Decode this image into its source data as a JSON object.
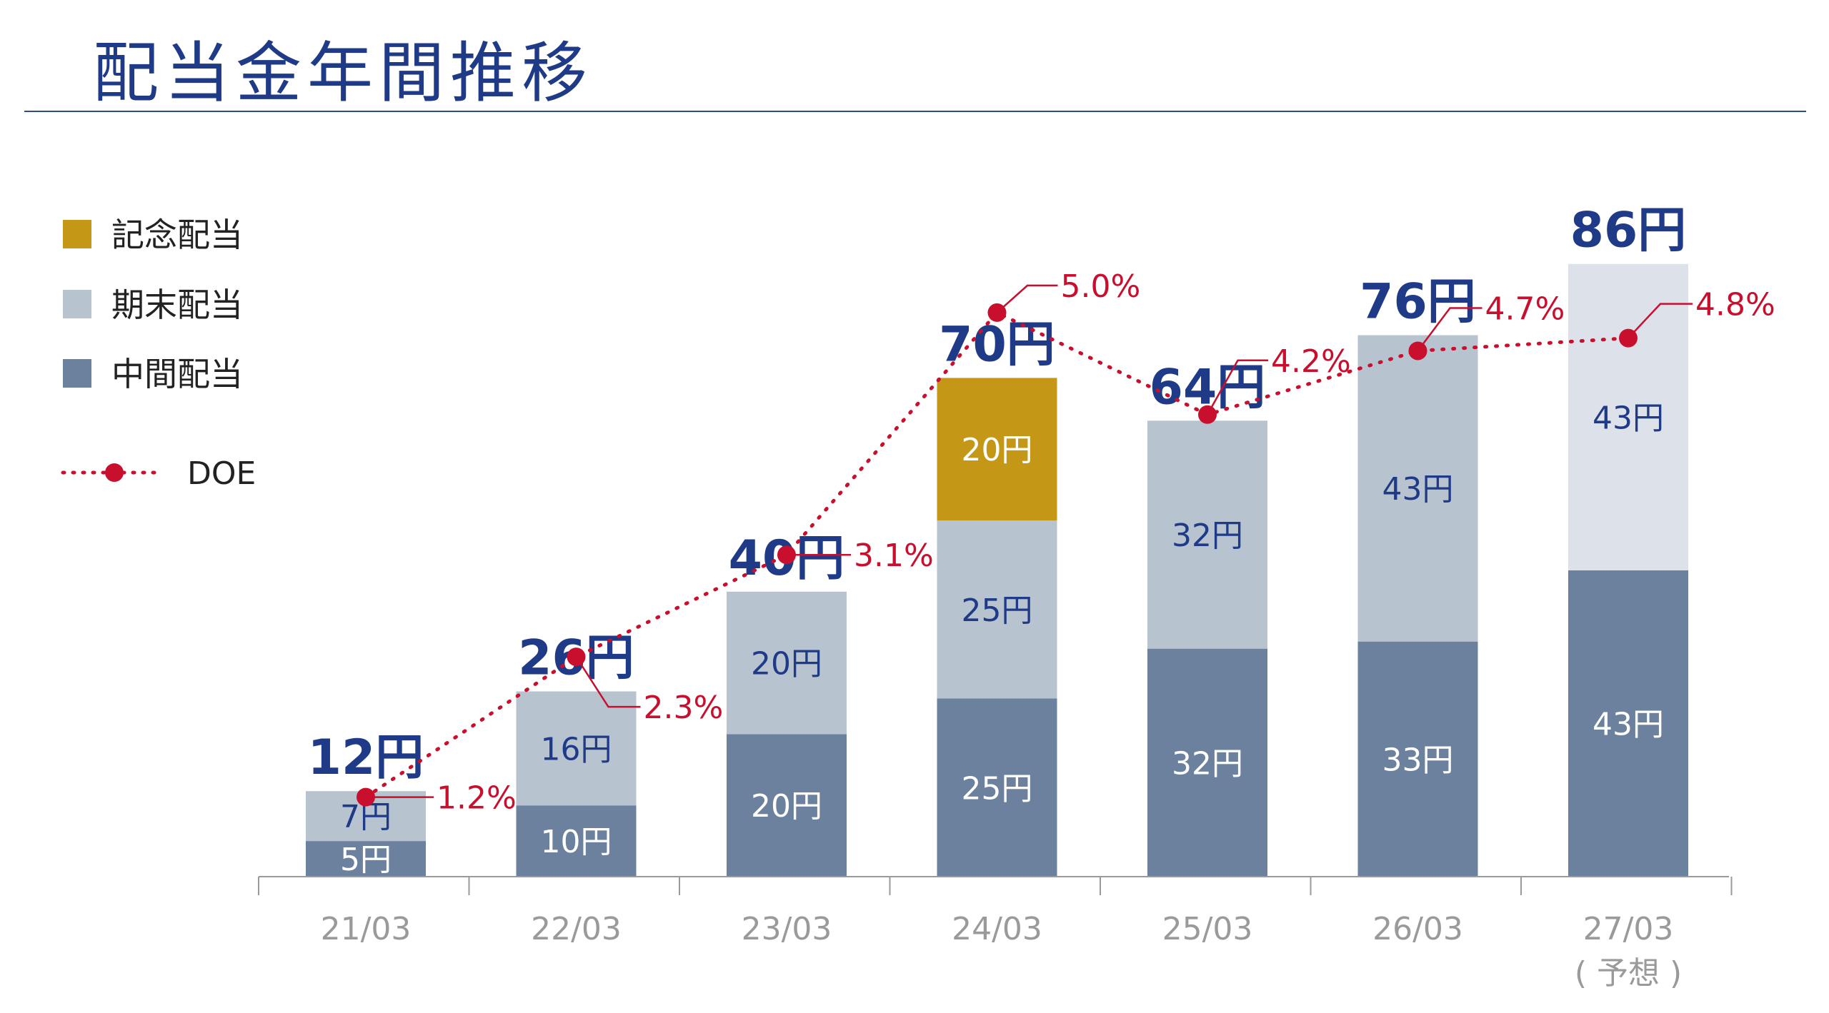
{
  "title": "配当金年間推移",
  "colors": {
    "title": "#1f3a87",
    "interim": "#6b819e",
    "year_end": "#b8c3d0",
    "year_end_forecast": "#dde2ea",
    "commemorative": "#c59717",
    "doe": "#c8102e",
    "total_label": "#1f3a87",
    "axis_label": "#9a9a9a"
  },
  "chart_data": {
    "type": "bar",
    "stacked": true,
    "categories": [
      "21/03",
      "22/03",
      "23/03",
      "24/03",
      "25/03",
      "26/03",
      "27/03\n( 予想 )"
    ],
    "category_labels": [
      [
        "21/03"
      ],
      [
        "22/03"
      ],
      [
        "23/03"
      ],
      [
        "24/03"
      ],
      [
        "25/03"
      ],
      [
        "26/03"
      ],
      [
        "27/03",
        "( 予想 )"
      ]
    ],
    "series": [
      {
        "key": "interim",
        "name": "中間配当",
        "values": [
          5,
          10,
          20,
          25,
          32,
          33,
          43
        ],
        "labels": [
          "5円",
          "10円",
          "20円",
          "25円",
          "32円",
          "33円",
          "43円"
        ]
      },
      {
        "key": "year_end",
        "name": "期末配当",
        "values": [
          7,
          16,
          20,
          25,
          32,
          43,
          43
        ],
        "labels": [
          "7円",
          "16円",
          "20円",
          "25円",
          "32円",
          "43円",
          "43円"
        ]
      },
      {
        "key": "commemorative",
        "name": "記念配当",
        "values": [
          0,
          0,
          0,
          20,
          0,
          0,
          0
        ],
        "labels": [
          "",
          "",
          "",
          "20円",
          "",
          "",
          ""
        ]
      }
    ],
    "totals": [
      12,
      26,
      40,
      70,
      64,
      76,
      86
    ],
    "total_labels": [
      "12円",
      "26円",
      "40円",
      "70円",
      "64円",
      "76円",
      "86円"
    ],
    "doe": {
      "name": "DOE",
      "values": [
        1.2,
        2.3,
        3.1,
        5.0,
        4.2,
        4.7,
        4.8
      ],
      "labels": [
        "1.2%",
        "2.3%",
        "3.1%",
        "5.0%",
        "4.2%",
        "4.7%",
        "4.8%"
      ]
    },
    "legend": {
      "position": "left",
      "items": [
        {
          "key": "commemorative",
          "label": "記念配当"
        },
        {
          "key": "year_end",
          "label": "期末配当"
        },
        {
          "key": "interim",
          "label": "中間配当"
        },
        {
          "key": "doe",
          "label": "DOE"
        }
      ]
    },
    "forecast_index": 6,
    "grid": false
  }
}
